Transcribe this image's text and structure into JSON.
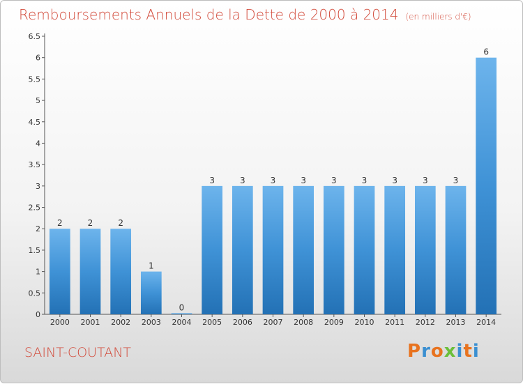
{
  "header": {
    "title": "Remboursements Annuels de la Dette de 2000 à 2014",
    "unit": "(en milliers d'€)"
  },
  "commune": "SAINT-COUTANT",
  "logo": {
    "text": "Proxiti",
    "colors": [
      "#e8731f",
      "#3a8fd1",
      "#e8731f",
      "#6bbf3a",
      "#3a8fd1",
      "#e8731f",
      "#3a8fd1"
    ]
  },
  "colors": {
    "bar": "#3f92d6",
    "bar_light": "#6db4ec",
    "bar_dark": "#2371b5",
    "axis": "#555555",
    "title": "#d24a3a"
  },
  "chart_data": {
    "type": "bar",
    "title": "Remboursements Annuels de la Dette de 2000 à 2014",
    "xlabel": "",
    "ylabel": "",
    "categories": [
      "2000",
      "2001",
      "2002",
      "2003",
      "2004",
      "2005",
      "2006",
      "2007",
      "2008",
      "2009",
      "2010",
      "2011",
      "2012",
      "2013",
      "2014"
    ],
    "values": [
      2,
      2,
      2,
      1,
      0,
      3,
      3,
      3,
      3,
      3,
      3,
      3,
      3,
      3,
      6
    ],
    "value_labels": [
      "2",
      "2",
      "2",
      "1",
      "0",
      "3",
      "3",
      "3",
      "3",
      "3",
      "3",
      "3",
      "3",
      "3",
      "6"
    ],
    "ylim": [
      0,
      6.5
    ],
    "yticks": [
      0,
      0.5,
      1,
      1.5,
      2,
      2.5,
      3,
      3.5,
      4,
      4.5,
      5,
      5.5,
      6,
      6.5
    ],
    "ytick_labels": [
      "0",
      "0.5",
      "1",
      "1.5",
      "2",
      "2.5",
      "3",
      "3.5",
      "4",
      "4.5",
      "5",
      "5.5",
      "6",
      "6.5"
    ],
    "grid": false,
    "legend": "none"
  }
}
